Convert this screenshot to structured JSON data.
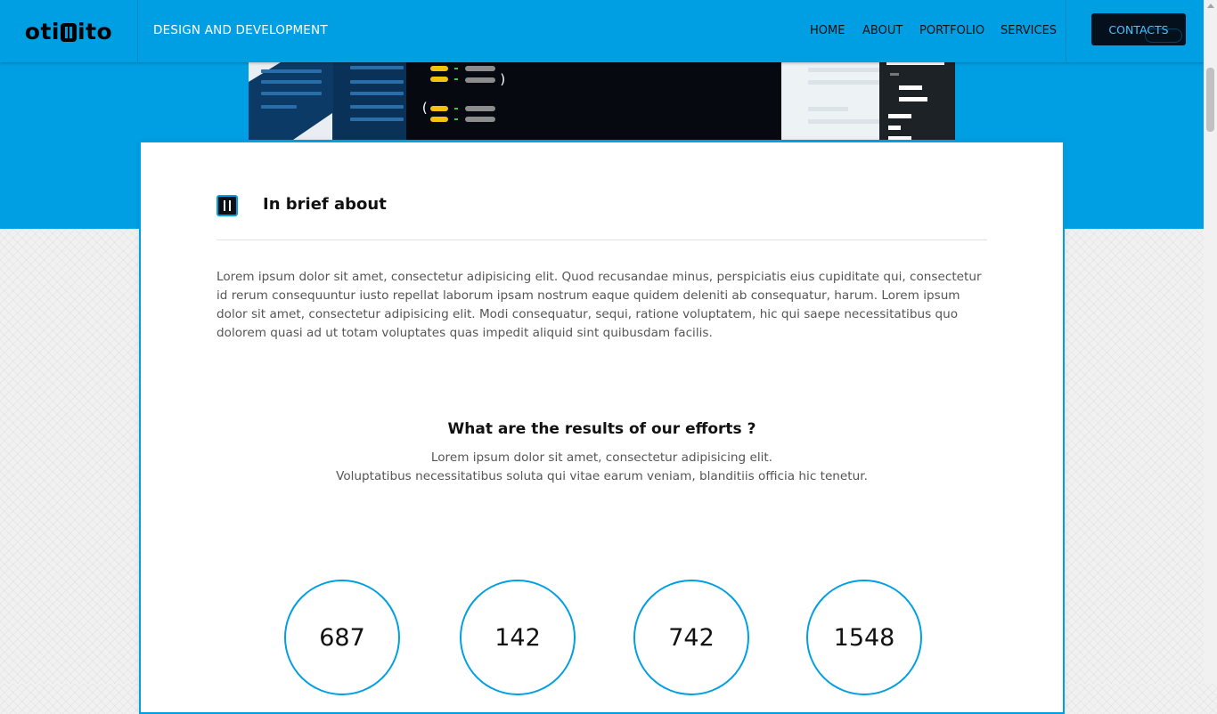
{
  "header": {
    "logo": {
      "prefix": "oti",
      "suffix": "ito",
      "mark_icon": "logo-mark-icon"
    },
    "tagline": "DESIGN AND DEVELOPMENT",
    "nav": [
      {
        "label": "HOME"
      },
      {
        "label": "ABOUT"
      },
      {
        "label": "PORTFOLIO"
      },
      {
        "label": "SERVICES"
      }
    ],
    "contacts_label": "CONTACTS"
  },
  "about": {
    "icon": "logo-mark-icon",
    "title": "In brief about",
    "text": "Lorem ipsum dolor sit amet, consectetur adipisicing elit. Quod recusandae minus, perspiciatis eius cupiditate qui, consectetur id rerum consequuntur iusto repellat laborum ipsam nostrum eaque quidem deleniti ab consequatur, harum. Lorem ipsum dolor sit amet, consectetur adipisicing elit. Modi consequatur, sequi, ratione voluptatem, hic qui saepe necessitatibus quo dolorem quasi ad ut totam voluptates quas impedit aliquid sint quibusdam facilis."
  },
  "results": {
    "title": "What are the results of our efforts ?",
    "subtitle_line1": "Lorem ipsum dolor sit amet, consectetur adipisicing elit.",
    "subtitle_line2": "Voluptatibus necessitatibus soluta qui vitae earum veniam, blanditiis officia hic tenetur.",
    "counters": [
      "687",
      "142",
      "742",
      "1548"
    ]
  },
  "colors": {
    "brand_blue": "#009fe3",
    "dark": "#04111c"
  }
}
